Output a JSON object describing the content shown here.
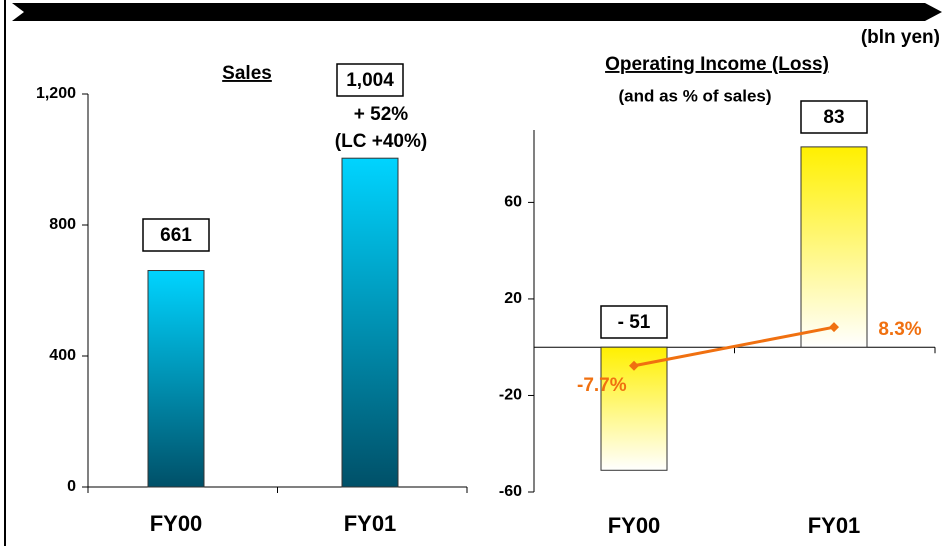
{
  "unit_label": "(bln yen)",
  "chart_data": [
    {
      "type": "bar",
      "title": "Sales",
      "categories": [
        "FY00",
        "FY01"
      ],
      "values": [
        661,
        1004
      ],
      "value_labels": [
        "661",
        "1,004"
      ],
      "annotations": [
        "+ 52%",
        "(LC +40%)"
      ],
      "color": [
        "#00d4ff",
        "#005068"
      ],
      "ylim": [
        0,
        1200
      ],
      "yticks": [
        0,
        400,
        800,
        {
          "value": 1200,
          "label": "1,200"
        }
      ]
    },
    {
      "type": "bar_line",
      "title": "Operating Income (Loss)",
      "subtitle": "(and as % of sales)",
      "categories": [
        "FY00",
        "FY01"
      ],
      "values": [
        -51,
        83
      ],
      "value_labels": [
        "- 51",
        "83"
      ],
      "color": [
        "#fff000",
        "#ffffff"
      ],
      "line_values": [
        -7.7,
        8.3
      ],
      "line_value_labels": [
        "-7.7%",
        "8.3%"
      ],
      "line_color": "#f07010",
      "ylim": [
        -60,
        90
      ],
      "yticks": [
        -60,
        -20,
        20,
        60
      ]
    }
  ]
}
